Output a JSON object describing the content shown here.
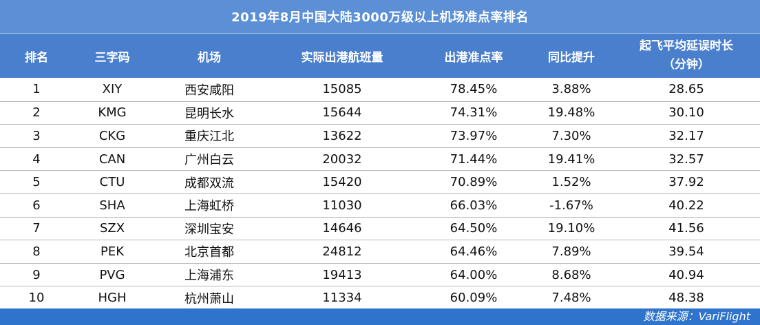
{
  "title": "2019年8月中国大陆3000万级以上机场准点率排名",
  "headers": {
    "rank": "排名",
    "code": "三字码",
    "airport": "机场",
    "flights": "实际出港航班量",
    "ontime": "出港准点率",
    "yoy": "同比提升",
    "delay_line1": "起飞平均延误时长",
    "delay_line2": "（分钟）"
  },
  "rows": [
    {
      "rank": "1",
      "code": "XIY",
      "airport": "西安咸阳",
      "flights": "15085",
      "ontime": "78.45%",
      "yoy": "3.88%",
      "delay": "28.65"
    },
    {
      "rank": "2",
      "code": "KMG",
      "airport": "昆明长水",
      "flights": "15644",
      "ontime": "74.31%",
      "yoy": "19.48%",
      "delay": "30.10"
    },
    {
      "rank": "3",
      "code": "CKG",
      "airport": "重庆江北",
      "flights": "13622",
      "ontime": "73.97%",
      "yoy": "7.30%",
      "delay": "32.17"
    },
    {
      "rank": "4",
      "code": "CAN",
      "airport": "广州白云",
      "flights": "20032",
      "ontime": "71.44%",
      "yoy": "19.41%",
      "delay": "32.57"
    },
    {
      "rank": "5",
      "code": "CTU",
      "airport": "成都双流",
      "flights": "15420",
      "ontime": "70.89%",
      "yoy": "1.52%",
      "delay": "37.92"
    },
    {
      "rank": "6",
      "code": "SHA",
      "airport": "上海虹桥",
      "flights": "11030",
      "ontime": "66.03%",
      "yoy": "-1.67%",
      "delay": "40.22"
    },
    {
      "rank": "7",
      "code": "SZX",
      "airport": "深圳宝安",
      "flights": "14646",
      "ontime": "64.50%",
      "yoy": "19.10%",
      "delay": "41.56"
    },
    {
      "rank": "8",
      "code": "PEK",
      "airport": "北京首都",
      "flights": "24812",
      "ontime": "64.46%",
      "yoy": "7.89%",
      "delay": "39.54"
    },
    {
      "rank": "9",
      "code": "PVG",
      "airport": "上海浦东",
      "flights": "19413",
      "ontime": "64.00%",
      "yoy": "8.68%",
      "delay": "40.94"
    },
    {
      "rank": "10",
      "code": "HGH",
      "airport": "杭州萧山",
      "flights": "11334",
      "ontime": "60.09%",
      "yoy": "7.48%",
      "delay": "48.38"
    }
  ],
  "source": "数据来源：VariFlight",
  "colors": {
    "title_bg": "#5b8fd6",
    "header_bg": "#4a7fcd",
    "footer_bg": "#2f74cc"
  }
}
